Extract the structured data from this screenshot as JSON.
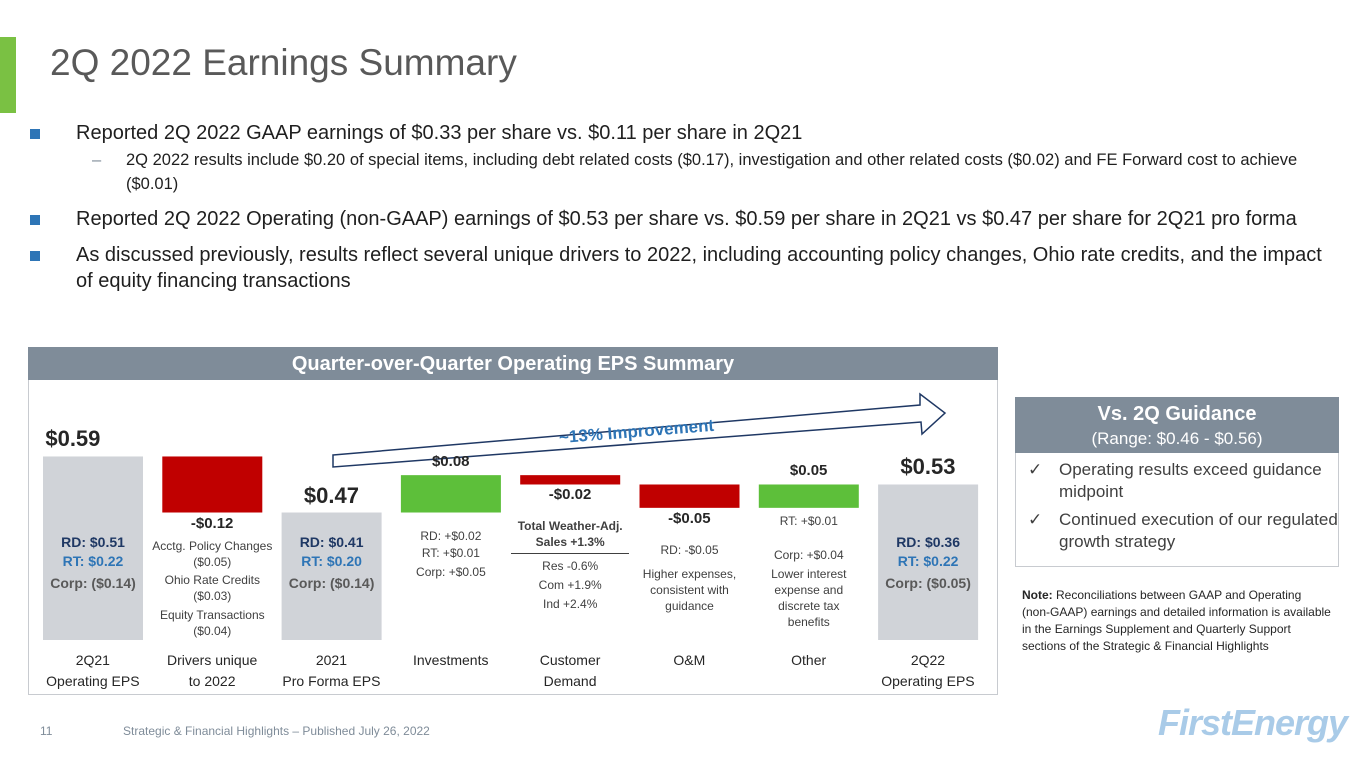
{
  "header": {
    "title": "2Q 2022 Earnings Summary"
  },
  "bullets": [
    {
      "text": "Reported 2Q 2022 GAAP earnings of $0.33 per share vs. $0.11 per share in 2Q21",
      "subs": [
        "2Q 2022 results include $0.20 of special items, including debt related costs ($0.17), investigation and other related costs ($0.02) and FE Forward cost to achieve ($0.01)"
      ]
    },
    {
      "text": "Reported 2Q 2022 Operating (non-GAAP) earnings of $0.53 per share vs. $0.59 per share in 2Q21 vs $0.47 per share for 2Q21 pro forma",
      "subs": []
    },
    {
      "text": "As discussed previously, results reflect several unique drivers to 2022, including accounting policy changes, Ohio rate credits, and the impact of equity financing transactions",
      "subs": []
    }
  ],
  "chart_data": {
    "type": "waterfall",
    "title": "Quarter-over-Quarter Operating EPS Summary",
    "annotation": "~13% Improvement",
    "categories": [
      "2Q21\nOperating EPS",
      "Drivers unique\nto 2022",
      "2021\nPro Forma EPS",
      "Investments",
      "Customer\nDemand",
      "O&M",
      "Other",
      "2Q22\nOperating EPS"
    ],
    "measures": [
      "absolute",
      "relative",
      "total",
      "relative",
      "relative",
      "relative",
      "relative",
      "total"
    ],
    "values": [
      0.59,
      -0.12,
      0.47,
      0.08,
      -0.02,
      -0.05,
      0.05,
      0.53
    ],
    "value_labels": [
      "$0.59",
      "-$0.12",
      "$0.47",
      "$0.08",
      "-$0.02",
      "-$0.05",
      "$0.05",
      "$0.53"
    ],
    "colors": {
      "total": "#d0d3d8",
      "increase": "#5dbf3a",
      "decrease": "#c00000"
    },
    "notes": [
      [
        "RD: $0.51",
        "RT: $0.22",
        "Corp: ($0.14)"
      ],
      [
        "Acctg. Policy Changes\n($0.05)",
        "Ohio Rate Credits\n($0.03)",
        "Equity Transactions\n($0.04)"
      ],
      [
        "RD: $0.41",
        "RT: $0.20",
        "Corp: ($0.14)"
      ],
      [
        "RD: +$0.02",
        "RT: +$0.01",
        "Corp: +$0.05"
      ],
      [
        "Total Weather-Adj.\nSales +1.3%",
        "Res  -0.6%",
        "Com +1.9%",
        "Ind +2.4%"
      ],
      [
        "RD: -$0.05",
        "Higher expenses,\nconsistent with guidance"
      ],
      [
        "RT: +$0.01",
        "Corp: +$0.04",
        "Lower interest\nexpense and\ndiscrete tax\nbenefits"
      ],
      [
        "RD: $0.36",
        "RT: $0.22",
        "Corp: ($0.05)"
      ]
    ]
  },
  "guidance": {
    "title": "Vs. 2Q Guidance",
    "subtitle": "(Range: $0.46 - $0.56)",
    "items": [
      "Operating results exceed guidance midpoint",
      "Continued execution of our regulated growth strategy"
    ]
  },
  "note": {
    "label": "Note:",
    "text": "Reconciliations between GAAP and Operating (non-GAAP) earnings and detailed information is available in the Earnings Supplement and Quarterly Support sections of the Strategic & Financial Highlights"
  },
  "footer": {
    "page": "11",
    "text": "Strategic & Financial Highlights – Published July 26, 2022",
    "logo": "FirstEnergy"
  }
}
